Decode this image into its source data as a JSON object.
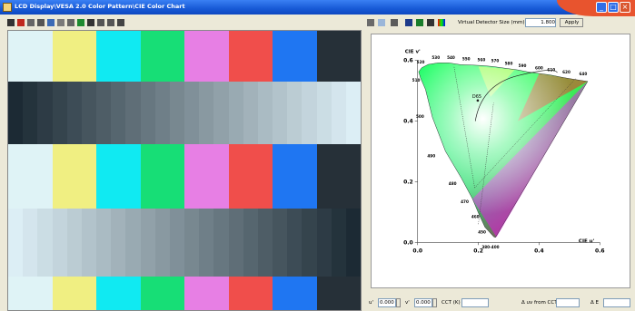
{
  "window": {
    "title": "LCD Display\\VESA 2.0 Color Pattern\\CIE Color Chart",
    "minimize_icon": "minimize-icon",
    "maximize_icon": "maximize-icon",
    "close_icon": "close-icon"
  },
  "left_toolbar": {
    "icons": [
      "crosshair-icon",
      "stop-icon",
      "dropdown-icon",
      "line-icon",
      "hue-icon",
      "tools-icon",
      "dropdown-icon",
      "green-square-icon",
      "gamut-icon",
      "grid-icon",
      "grid2-icon",
      "list-icon"
    ]
  },
  "pattern": {
    "bar_colors": [
      "#dff3f6",
      "#f0ef82",
      "#10eaf2",
      "#17de76",
      "#e77fe4",
      "#f04e4b",
      "#1f76f2",
      "#263038"
    ],
    "gray_steps": 24
  },
  "right_toolbar": {
    "detector_label": "Virtual Detector Size (mm)",
    "detector_value": "1.800",
    "apply_label": "Apply"
  },
  "chart_data": {
    "type": "scatter",
    "title": "",
    "xlabel": "CIE u'",
    "ylabel": "CIE v'",
    "xlim": [
      -0.05,
      0.65
    ],
    "ylim": [
      -0.05,
      0.65
    ],
    "xticks": [
      "0.0",
      "0.2",
      "0.4",
      "0.6"
    ],
    "yticks": [
      "0.0",
      "0.2",
      "0.4",
      "0.6"
    ],
    "wavelength_labels": [
      "380-400",
      "450",
      "460",
      "470",
      "480",
      "490",
      "500",
      "510",
      "520",
      "530",
      "540",
      "550",
      "560",
      "570",
      "580",
      "590",
      "600",
      "610",
      "620",
      "640"
    ],
    "annotation": "D65",
    "white_point": [
      0.198,
      0.468
    ]
  },
  "status_bar": {
    "u_label": "u'",
    "u_value": "0.000",
    "v_label": "v'",
    "v_value": "0.000",
    "cct_label": "CCT (K)",
    "cct_value": "",
    "delta_uv_label": "Δ uv from CCT",
    "delta_uv_value": "",
    "delta_e_label": "Δ E",
    "delta_e_value": ""
  }
}
